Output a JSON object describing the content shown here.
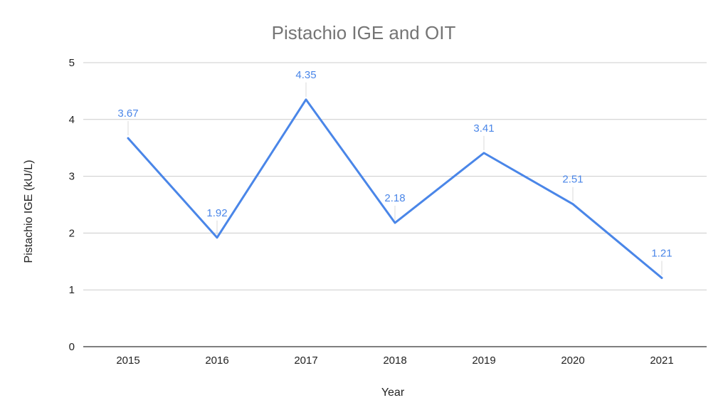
{
  "chart_data": {
    "type": "line",
    "title": "Pistachio IGE and OIT",
    "xlabel": "Year",
    "ylabel": "Pistachio IGE (kU/L)",
    "categories": [
      "2015",
      "2016",
      "2017",
      "2018",
      "2019",
      "2020",
      "2021"
    ],
    "series": [
      {
        "name": "Pistachio IGE (kU/L)",
        "values": [
          3.67,
          1.92,
          4.35,
          2.18,
          3.41,
          2.51,
          1.21
        ],
        "data_labels": [
          "3.67",
          "1.92",
          "4.35",
          "2.18",
          "3.41",
          "2.51",
          "1.21"
        ],
        "color": "#4a86e8"
      }
    ],
    "ylim": [
      0,
      5
    ],
    "yticks": [
      0,
      1,
      2,
      3,
      4,
      5
    ],
    "ytick_labels": [
      "0",
      "1",
      "2",
      "3",
      "4",
      "5"
    ],
    "grid": true,
    "legend": "none"
  }
}
